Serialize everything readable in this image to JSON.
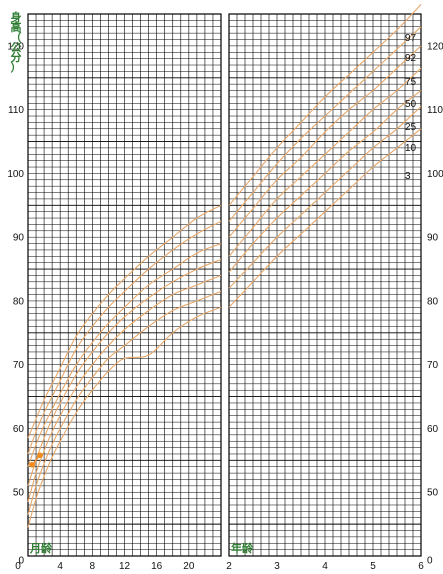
{
  "chart_data": {
    "type": "line",
    "title": "",
    "ylabel_chars": [
      "身",
      "高",
      "（",
      "公",
      "分",
      "）"
    ],
    "xlabel_months": "月龄",
    "xlabel_years": "年龄",
    "grid": true,
    "ylim": [
      40,
      125
    ],
    "left_y_ticks": [
      "0",
      "50",
      "60",
      "70",
      "80",
      "90",
      "100",
      "110",
      "120"
    ],
    "right_y_ticks": [
      "0",
      "50",
      "60",
      "70",
      "80",
      "90",
      "100",
      "110",
      "120"
    ],
    "month_ticks": [
      "0",
      "4",
      "8",
      "12",
      "16",
      "20"
    ],
    "year_ticks": [
      "2",
      "3",
      "4",
      "5",
      "6"
    ],
    "percentile_labels": [
      "97",
      "92",
      "75",
      "50",
      "25",
      "10",
      "3"
    ],
    "month_panel": {
      "x_unit": "months",
      "xlim": [
        0,
        24
      ],
      "x": [
        0,
        1,
        2,
        3,
        4,
        6,
        8,
        10,
        12,
        15,
        18,
        21,
        24
      ],
      "series": [
        {
          "name": "97",
          "values": [
            58.5,
            61.5,
            64.5,
            67.0,
            69.5,
            74.5,
            78.0,
            81.0,
            83.5,
            87.0,
            90.0,
            93.0,
            95.0
          ]
        },
        {
          "name": "92",
          "values": [
            56.0,
            59.5,
            62.5,
            65.0,
            67.5,
            72.5,
            76.0,
            79.0,
            81.5,
            85.0,
            88.0,
            90.5,
            92.5
          ]
        },
        {
          "name": "75",
          "values": [
            54.0,
            57.5,
            60.5,
            63.0,
            65.5,
            70.0,
            73.5,
            76.5,
            79.0,
            82.5,
            85.0,
            87.5,
            89.0
          ]
        },
        {
          "name": "50",
          "values": [
            51.0,
            55.0,
            58.5,
            61.5,
            64.0,
            68.5,
            72.0,
            75.0,
            77.5,
            80.5,
            83.0,
            85.0,
            86.5
          ]
        },
        {
          "name": "25",
          "values": [
            48.5,
            53.0,
            56.5,
            59.5,
            62.0,
            66.5,
            70.0,
            73.0,
            75.5,
            78.5,
            81.0,
            82.5,
            84.0
          ]
        },
        {
          "name": "10",
          "values": [
            46.5,
            51.0,
            54.5,
            57.5,
            60.0,
            64.5,
            68.0,
            71.0,
            73.0,
            76.0,
            78.5,
            80.0,
            81.5
          ]
        },
        {
          "name": "3",
          "values": [
            44.5,
            49.0,
            52.5,
            55.5,
            58.0,
            62.5,
            66.0,
            69.0,
            71.0,
            71.5,
            75.0,
            77.5,
            79.0
          ]
        }
      ],
      "measurements": [
        {
          "x": 0.5,
          "y": 54.3
        },
        {
          "x": 1.5,
          "y": 55.8
        }
      ]
    },
    "year_panel": {
      "x_unit": "years",
      "xlim": [
        2,
        6
      ],
      "x": [
        2,
        2.5,
        3,
        3.5,
        4,
        4.5,
        5,
        5.5,
        6
      ],
      "series": [
        {
          "name": "97",
          "values": [
            95.0,
            99.5,
            104.0,
            108.0,
            112.0,
            115.5,
            119.0,
            122.5,
            126.5
          ]
        },
        {
          "name": "92",
          "values": [
            92.5,
            97.0,
            101.5,
            105.5,
            109.0,
            112.5,
            116.0,
            119.5,
            123.0
          ]
        },
        {
          "name": "75",
          "values": [
            90.0,
            94.5,
            99.0,
            102.5,
            106.5,
            110.0,
            113.0,
            116.5,
            120.0
          ]
        },
        {
          "name": "50",
          "values": [
            87.0,
            91.5,
            96.0,
            99.5,
            103.0,
            106.5,
            110.0,
            113.0,
            116.5
          ]
        },
        {
          "name": "25",
          "values": [
            84.5,
            89.0,
            93.0,
            96.5,
            100.0,
            103.5,
            106.5,
            110.0,
            113.0
          ]
        },
        {
          "name": "10",
          "values": [
            82.0,
            86.0,
            90.0,
            93.5,
            97.0,
            100.5,
            104.0,
            107.0,
            110.5
          ]
        },
        {
          "name": "3",
          "values": [
            79.0,
            83.0,
            87.0,
            90.5,
            94.0,
            97.5,
            101.0,
            104.0,
            107.0
          ]
        }
      ]
    }
  },
  "colors": {
    "curve": "#e8a86a",
    "measurement": "#f08a1a",
    "grid": "#000000",
    "axis_title": "#2e7d32"
  }
}
